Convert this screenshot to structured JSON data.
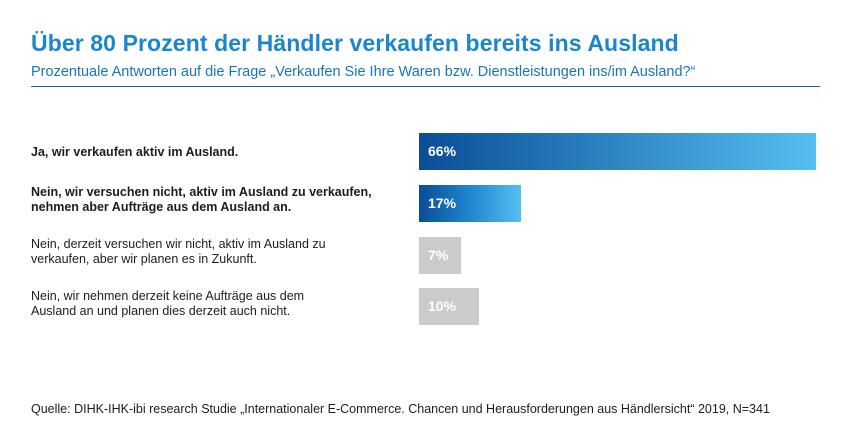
{
  "header": {
    "title": "Über 80 Prozent der Händler verkaufen bereits ins Ausland",
    "subtitle": "Prozentuale Antworten auf die Frage „Verkaufen Sie Ihre Waren bzw. Dienstleistungen ins/im Ausland?“"
  },
  "source": "Quelle: DIHK-IHK-ibi research Studie „Internationaler E-Commerce. Chancen und Herausforderungen aus Händlersicht“ 2019, N=341",
  "colors": {
    "title": "#1a86cf",
    "bar_primary_start": "#0a4d96",
    "bar_primary_end": "#55bff0",
    "bar_secondary": "#cbcbcb"
  },
  "chart_data": {
    "type": "bar",
    "orientation": "horizontal",
    "categories": [
      "Ja, wir verkaufen aktiv im Ausland.",
      "Nein, wir versuchen nicht, aktiv im Ausland zu verkaufen, nehmen aber Aufträge aus dem Ausland an.",
      "Nein, derzeit versuchen wir nicht, aktiv im Ausland zu verkaufen, aber wir planen es in Zukunft.",
      "Nein, wir nehmen derzeit keine Aufträge aus dem Ausland an und planen dies derzeit auch nicht."
    ],
    "values": [
      66,
      17,
      7,
      10
    ],
    "value_labels": [
      "66%",
      "17%",
      "7%",
      "10%"
    ],
    "highlighted": [
      true,
      true,
      false,
      false
    ],
    "unit": "%"
  }
}
